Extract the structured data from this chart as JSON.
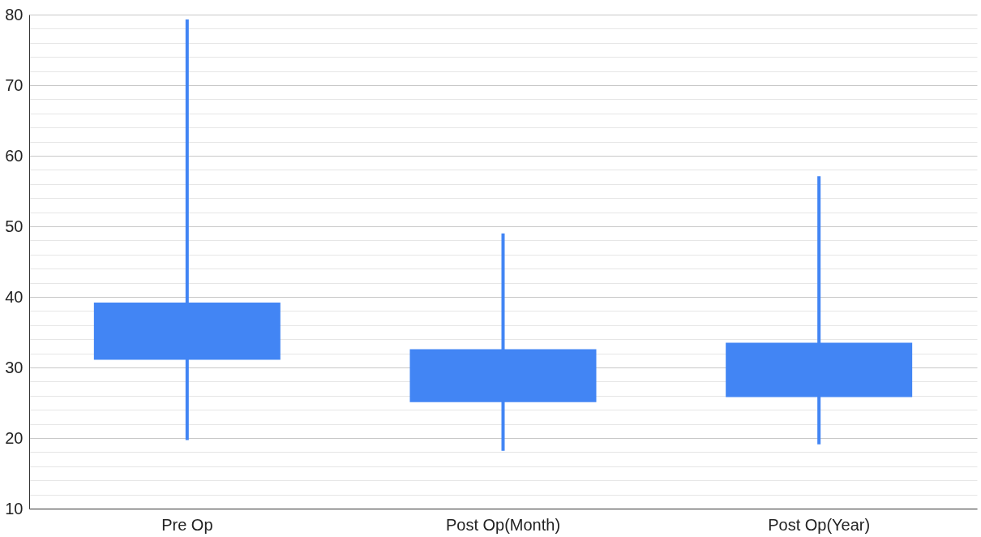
{
  "chart_data": {
    "type": "candlestick",
    "categories": [
      "Pre Op",
      "Post Op(Month)",
      "Post Op(Year)"
    ],
    "ohlc": [
      [
        39.2,
        79.3,
        19.7,
        31.1
      ],
      [
        32.6,
        49.0,
        18.2,
        25.1
      ],
      [
        33.5,
        57.1,
        19.1,
        25.8
      ]
    ],
    "color": "#4285f4",
    "ylim": [
      10,
      80
    ],
    "yticks": [
      10,
      {
        "value": 12,
        "label": null
      },
      {
        "value": 14,
        "label": null
      },
      {
        "value": 16,
        "label": null
      },
      {
        "value": 18,
        "label": null
      },
      20,
      {
        "value": 22,
        "label": null
      },
      {
        "value": 24,
        "label": null
      },
      {
        "value": 26,
        "label": null
      },
      {
        "value": 28,
        "label": null
      },
      30,
      {
        "value": 32,
        "label": null
      },
      {
        "value": 34,
        "label": null
      },
      {
        "value": 36,
        "label": null
      },
      {
        "value": 38,
        "label": null
      },
      40,
      {
        "value": 42,
        "label": null
      },
      {
        "value": 44,
        "label": null
      },
      {
        "value": 46,
        "label": null
      },
      {
        "value": 48,
        "label": null
      },
      50,
      {
        "value": 52,
        "label": null
      },
      {
        "value": 54,
        "label": null
      },
      {
        "value": 56,
        "label": null
      },
      {
        "value": 58,
        "label": null
      },
      60,
      {
        "value": 62,
        "label": null
      },
      {
        "value": 64,
        "label": null
      },
      {
        "value": 66,
        "label": null
      },
      {
        "value": 68,
        "label": null
      },
      70,
      {
        "value": 72,
        "label": null
      },
      {
        "value": 74,
        "label": null
      },
      {
        "value": 76,
        "label": null
      },
      {
        "value": 78,
        "label": null
      },
      80
    ],
    "grid": "y"
  }
}
